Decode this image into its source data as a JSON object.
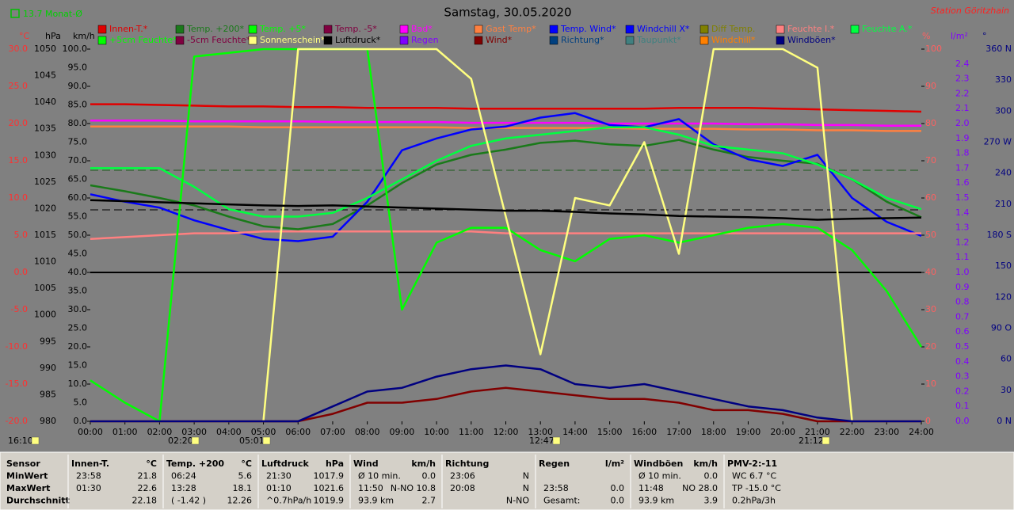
{
  "chart_data": {
    "type": "line",
    "title": "Samstag, 30.05.2020",
    "station": "Station Göritzhain",
    "month_average": "13.7 Monat-Ø",
    "x": [
      0,
      1,
      2,
      3,
      4,
      5,
      6,
      7,
      8,
      9,
      10,
      11,
      12,
      13,
      14,
      15,
      16,
      17,
      18,
      19,
      20,
      21,
      22,
      23,
      24
    ],
    "xlim": [
      0,
      24
    ],
    "xticks": [
      {
        "value": 0,
        "label": "00:00"
      },
      {
        "value": 1,
        "label": "01:00"
      },
      {
        "value": 2,
        "label": "02:00"
      },
      {
        "value": 3,
        "label": "03:00"
      },
      {
        "value": 4,
        "label": "04:00"
      },
      {
        "value": 5,
        "label": "05:00"
      },
      {
        "value": 6,
        "label": "06:00"
      },
      {
        "value": 7,
        "label": "07:00"
      },
      {
        "value": 8,
        "label": "08:00"
      },
      {
        "value": 9,
        "label": "09:00"
      },
      {
        "value": 10,
        "label": "10:00"
      },
      {
        "value": 11,
        "label": "11:00"
      },
      {
        "value": 12,
        "label": "12:00"
      },
      {
        "value": 13,
        "label": "13:00"
      },
      {
        "value": 14,
        "label": "14:00"
      },
      {
        "value": 15,
        "label": "15:00"
      },
      {
        "value": 16,
        "label": "16:00"
      },
      {
        "value": 17,
        "label": "17:00"
      },
      {
        "value": 18,
        "label": "18:00"
      },
      {
        "value": 19,
        "label": "19:00"
      },
      {
        "value": 20,
        "label": "20:00"
      },
      {
        "value": 21,
        "label": "21:00"
      },
      {
        "value": 22,
        "label": "22:00"
      },
      {
        "value": 23,
        "label": "23:00"
      },
      {
        "value": 24,
        "label": "24:00"
      }
    ],
    "ylabel": "°C",
    "ycolor": "#ff3030",
    "ylim": [
      -20,
      30
    ],
    "yticks": [
      {
        "value": -20,
        "label": "-20.0"
      },
      {
        "value": -15,
        "label": "-15.0"
      },
      {
        "value": -10,
        "label": "-10.0"
      },
      {
        "value": -5,
        "label": "-5.0"
      },
      {
        "value": 0,
        "label": "0.0"
      },
      {
        "value": 5,
        "label": "5.0"
      },
      {
        "value": 10,
        "label": "10.0"
      },
      {
        "value": 15,
        "label": "15.0"
      },
      {
        "value": 20,
        "label": "20.0"
      },
      {
        "value": 25,
        "label": "25.0"
      },
      {
        "value": 30,
        "label": "30.0"
      }
    ],
    "y2label": "hPa",
    "y2color": "#000000",
    "y2lim": [
      980,
      1050
    ],
    "y2ticks": [
      980,
      985,
      990,
      995,
      1000,
      1005,
      1010,
      1015,
      1020,
      1025,
      1030,
      1035,
      1040,
      1045,
      1050
    ],
    "y3label": "km/h",
    "y3color": "#000000",
    "y3lim": [
      0,
      100
    ],
    "y3ticks": [
      {
        "value": 0,
        "label": "0.0"
      },
      {
        "value": 5,
        "label": "5.0"
      },
      {
        "value": 10,
        "label": "10.0"
      },
      {
        "value": 15,
        "label": "15.0"
      },
      {
        "value": 20,
        "label": "20.0"
      },
      {
        "value": 25,
        "label": "25.0"
      },
      {
        "value": 30,
        "label": "30.0"
      },
      {
        "value": 35,
        "label": "35.0"
      },
      {
        "value": 40,
        "label": "40.0"
      },
      {
        "value": 45,
        "label": "45.0"
      },
      {
        "value": 50,
        "label": "50.0"
      },
      {
        "value": 55,
        "label": "55.0"
      },
      {
        "value": 60,
        "label": "60.0"
      },
      {
        "value": 65,
        "label": "65.0"
      },
      {
        "value": 70,
        "label": "70.0"
      },
      {
        "value": 75,
        "label": "75.0"
      },
      {
        "value": 80,
        "label": "80.0"
      },
      {
        "value": 85,
        "label": "85.0"
      },
      {
        "value": 90,
        "label": "90.0"
      },
      {
        "value": 95,
        "label": "95.0"
      },
      {
        "value": 100,
        "label": "100.0"
      }
    ],
    "y4label": "%",
    "y4color": "#ff6060",
    "y4lim": [
      0,
      100
    ],
    "y4ticks": [
      0,
      10,
      20,
      30,
      40,
      50,
      60,
      70,
      80,
      90,
      100
    ],
    "y5label": "l/m²",
    "y5color": "#8000ff",
    "y5lim": [
      0,
      2.5
    ],
    "y5ticks": [
      {
        "value": 0,
        "label": "0.0"
      },
      0.1,
      0.2,
      0.3,
      0.4,
      0.5,
      0.6,
      0.7,
      0.8,
      0.9,
      {
        "value": 1,
        "label": "1.0"
      },
      1.1,
      1.2,
      1.3,
      1.4,
      1.5,
      1.6,
      1.7,
      1.8,
      1.9,
      {
        "value": 2,
        "label": "2.0"
      },
      2.1,
      2.2,
      2.3,
      2.4
    ],
    "y6label": "°",
    "y6color": "#000080",
    "y6lim": [
      0,
      360
    ],
    "y6ticks": [
      {
        "value": 0,
        "label": "0 N"
      },
      30,
      60,
      {
        "value": 90,
        "label": "90 O"
      },
      120,
      150,
      {
        "value": 180,
        "label": "180 S"
      },
      210,
      240,
      {
        "value": 270,
        "label": "270 W"
      },
      300,
      330,
      {
        "value": 360,
        "label": "360 N"
      }
    ],
    "series": [
      {
        "name": "Innen-T.*",
        "color": "#e00000",
        "axis": "y",
        "values": [
          22.6,
          22.6,
          22.5,
          22.4,
          22.3,
          22.3,
          22.2,
          22.2,
          22.1,
          22.1,
          22.1,
          22.0,
          22.0,
          22.0,
          22.0,
          22.0,
          22.0,
          22.1,
          22.1,
          22.1,
          22.0,
          21.9,
          21.8,
          21.7,
          21.6
        ]
      },
      {
        "name": "Temp. +200*",
        "color": "#1a7a1a",
        "axis": "y",
        "values": [
          11.7,
          10.9,
          10.0,
          9.0,
          7.5,
          6.2,
          5.8,
          6.5,
          9.0,
          12.0,
          14.5,
          15.8,
          16.5,
          17.4,
          17.7,
          17.2,
          17.0,
          17.8,
          16.5,
          15.5,
          15.0,
          14.6,
          12.5,
          9.5,
          7.4
        ]
      },
      {
        "name": "Temp. +5*",
        "color": "#00ff00"
      },
      {
        "name": "Temp. -5*",
        "color": "#800040"
      },
      {
        "name": "Bad*",
        "color": "#ff00ff",
        "axis": "y",
        "values": [
          20.4,
          20.4,
          20.4,
          20.3,
          20.3,
          20.3,
          20.3,
          20.2,
          20.2,
          20.2,
          20.2,
          20.1,
          20.1,
          20.1,
          20.1,
          20.0,
          20.0,
          20.0,
          20.0,
          19.9,
          19.9,
          19.8,
          19.8,
          19.7,
          19.7
        ]
      },
      {
        "name": "Gast Temp*",
        "color": "#ff8040",
        "axis": "y",
        "values": [
          19.6,
          19.6,
          19.6,
          19.6,
          19.6,
          19.5,
          19.5,
          19.5,
          19.5,
          19.5,
          19.5,
          19.4,
          19.4,
          19.4,
          19.4,
          19.4,
          19.3,
          19.3,
          19.3,
          19.2,
          19.2,
          19.1,
          19.1,
          19.0,
          19.0
        ]
      },
      {
        "name": "Temp. Wind*",
        "color": "#0000ff"
      },
      {
        "name": "Windchill X*",
        "color": "#0000ff",
        "axis": "y",
        "values": [
          10.5,
          9.5,
          8.7,
          7.0,
          5.7,
          4.5,
          4.2,
          4.8,
          9.5,
          16.4,
          18.0,
          19.2,
          19.6,
          20.8,
          21.4,
          19.8,
          19.5,
          20.6,
          17.2,
          15.2,
          14.3,
          15.8,
          10.0,
          6.8,
          4.9
        ]
      },
      {
        "name": "Diff Temp.",
        "color": "#808000"
      },
      {
        "name": "Feuchte I.*",
        "color": "#ff8080",
        "axis": "y4",
        "values": [
          49,
          49.5,
          50,
          50.5,
          50.5,
          51,
          51,
          51,
          51,
          51,
          51,
          51,
          50.5,
          50.5,
          50.5,
          50.5,
          50.5,
          50.5,
          50.5,
          50.5,
          50.5,
          50.5,
          50.5,
          50.5,
          50.5
        ]
      },
      {
        "name": "Feuchte A.*",
        "color": "#00ff40",
        "axis": "y4",
        "values": [
          68,
          68,
          68,
          63,
          57,
          55,
          55,
          56,
          60,
          65,
          70,
          74,
          76,
          77,
          78,
          79,
          79,
          77,
          74,
          73,
          72,
          69,
          65,
          60,
          57
        ]
      },
      {
        "name": "+5cm Feuchte*",
        "color": "#00ff00",
        "axis": "y4",
        "values": [
          11,
          5,
          0,
          98,
          99,
          100,
          100,
          100,
          100,
          30,
          48,
          52,
          52,
          46,
          43,
          49,
          50,
          48,
          50,
          52,
          53,
          52,
          46,
          35,
          20
        ]
      },
      {
        "name": "-5cm Feuchte*",
        "color": "#800040"
      },
      {
        "name": "Sonnenschein*",
        "color": "#ffff80",
        "axis": "y4",
        "values": [
          0,
          0,
          0,
          0,
          0,
          0,
          100,
          100,
          100,
          100,
          100,
          92,
          55,
          18,
          60,
          58,
          75,
          45,
          100,
          100,
          100,
          95,
          0,
          0,
          0
        ]
      },
      {
        "name": "Luftdruck*",
        "color": "#000000",
        "axis": "y2",
        "values": [
          1021.6,
          1021.4,
          1021.2,
          1021.0,
          1020.8,
          1020.6,
          1020.5,
          1020.6,
          1020.4,
          1020.2,
          1020.0,
          1019.8,
          1019.6,
          1019.6,
          1019.4,
          1019.1,
          1018.9,
          1018.6,
          1018.5,
          1018.4,
          1018.2,
          1017.9,
          1018.1,
          1018.2,
          1018.3
        ]
      },
      {
        "name": "Regen",
        "color": "#8000ff"
      },
      {
        "name": "Wind*",
        "color": "#800000",
        "axis": "y3",
        "values": [
          0,
          0,
          0,
          0,
          0,
          0,
          0,
          2,
          5,
          5,
          6,
          8,
          9,
          8,
          7,
          6,
          6,
          5,
          3,
          3,
          2,
          0,
          0,
          0,
          0
        ]
      },
      {
        "name": "Richtung*",
        "color": "#004080"
      },
      {
        "name": "Taupunkt*",
        "color": "#408080"
      },
      {
        "name": "Windchill*",
        "color": "#ff8000"
      },
      {
        "name": "Windböen*",
        "color": "#000080",
        "axis": "y3",
        "values": [
          0,
          0,
          0,
          0,
          0,
          0,
          0,
          4,
          8,
          9,
          12,
          14,
          15,
          14,
          10,
          9,
          10,
          8,
          6,
          4,
          3,
          1,
          0,
          0,
          0
        ]
      }
    ],
    "markers": [
      {
        "label": "16:10"
      },
      {
        "label": "02:20"
      },
      {
        "label": "05:01"
      },
      {
        "label": "12:47"
      },
      {
        "label": "21:12"
      }
    ]
  },
  "stats_table": {
    "row_labels": [
      "Sensor",
      "MinWert",
      "MaxWert",
      "Durchschnitt"
    ],
    "groups": [
      {
        "header": [
          "Innen-T.",
          "°C"
        ],
        "rows": [
          [
            "23:58",
            "21.8"
          ],
          [
            "01:30",
            "22.6"
          ],
          [
            null,
            "22.18"
          ]
        ]
      },
      {
        "header": [
          "Temp. +200",
          "°C"
        ],
        "rows": [
          [
            "06:24",
            "5.6"
          ],
          [
            "13:28",
            "18.1"
          ],
          [
            "( -1.42 )",
            "12.26"
          ]
        ]
      },
      {
        "header": [
          "Luftdruck",
          "hPa"
        ],
        "rows": [
          [
            "21:30",
            "1017.9"
          ],
          [
            "01:10",
            "1021.6"
          ],
          [
            "^0.7hPa/h",
            "1019.9"
          ]
        ]
      },
      {
        "header": [
          "Wind",
          "km/h"
        ],
        "rows": [
          [
            "Ø 10 min.",
            "0.0"
          ],
          [
            "11:50",
            "N-NO 10.8"
          ],
          [
            "93.9 km",
            "2.7"
          ]
        ]
      },
      {
        "header": [
          "Richtung",
          null
        ],
        "rows": [
          [
            "23:06",
            "N"
          ],
          [
            "20:08",
            "N"
          ],
          [
            null,
            "N-NO"
          ]
        ]
      },
      {
        "header": [
          "Regen",
          "l/m²"
        ],
        "rows": [
          [
            null,
            null
          ],
          [
            "23:58",
            "0.0"
          ],
          [
            "Gesamt:",
            "0.0"
          ]
        ]
      },
      {
        "header": [
          "Windböen",
          "km/h"
        ],
        "rows": [
          [
            "Ø 10 min.",
            "0.0"
          ],
          [
            "11:48",
            "NO 28.0"
          ],
          [
            "93.9 km",
            "3.9"
          ]
        ]
      },
      {
        "header": [
          "PMV-2:-11",
          null
        ],
        "rows": [
          [
            "WC 6.7 °C",
            null
          ],
          [
            "TP -15.0 °C",
            null
          ],
          [
            "0.2hPa/3h",
            null
          ]
        ]
      }
    ]
  }
}
